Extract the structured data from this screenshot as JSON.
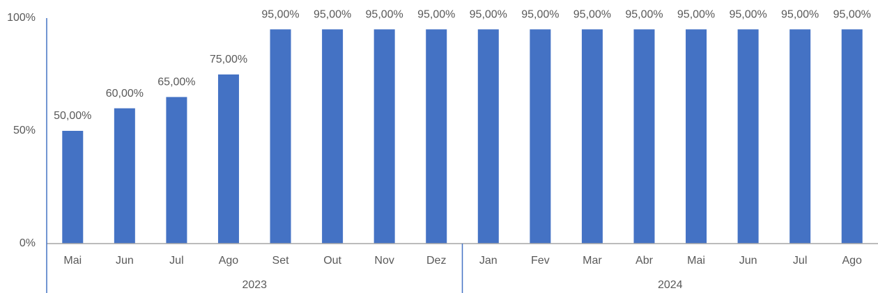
{
  "chart_data": {
    "type": "bar",
    "categories": [
      "Mai",
      "Jun",
      "Jul",
      "Ago",
      "Set",
      "Out",
      "Nov",
      "Dez",
      "Jan",
      "Fev",
      "Mar",
      "Abr",
      "Mai",
      "Jun",
      "Jul",
      "Ago"
    ],
    "groups": [
      {
        "label": "2023",
        "size": 8
      },
      {
        "label": "2024",
        "size": 8
      }
    ],
    "values": [
      50,
      60,
      65,
      75,
      95,
      95,
      95,
      95,
      95,
      95,
      95,
      95,
      95,
      95,
      95,
      95
    ],
    "value_labels": [
      "50,00%",
      "60,00%",
      "65,00%",
      "75,00%",
      "95,00%",
      "95,00%",
      "95,00%",
      "95,00%",
      "95,00%",
      "95,00%",
      "95,00%",
      "95,00%",
      "95,00%",
      "95,00%",
      "95,00%",
      "95,00%"
    ],
    "color": "#4472c4",
    "ylim": [
      0,
      100
    ],
    "yticks": [
      {
        "value": 0,
        "label": "0%"
      },
      {
        "value": 50,
        "label": "50%"
      },
      {
        "value": 100,
        "label": "100%"
      }
    ],
    "grid": false
  }
}
